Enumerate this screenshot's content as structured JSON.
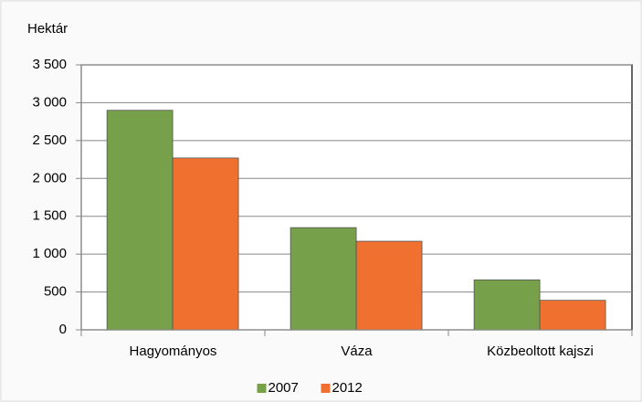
{
  "chart_data": {
    "type": "bar",
    "y_label": "Hektár",
    "categories": [
      "Hagyományos",
      "Váza",
      "Közbeoltott kajszi"
    ],
    "series": [
      {
        "name": "2007",
        "color": "#77a04a",
        "values": [
          2900,
          1350,
          660
        ]
      },
      {
        "name": "2012",
        "color": "#f07030",
        "values": [
          2270,
          1170,
          390
        ]
      }
    ],
    "ylim": [
      0,
      3500
    ],
    "yticks": [
      0,
      500,
      {
        "value": 1000,
        "label": "1 000"
      },
      {
        "value": 1500,
        "label": "1 500"
      },
      {
        "value": 2000,
        "label": "2 000"
      },
      {
        "value": 2500,
        "label": "2 500"
      },
      {
        "value": 3000,
        "label": "3 000"
      },
      {
        "value": 3500,
        "label": "3 500"
      }
    ],
    "grid": true,
    "legend": "bottom"
  }
}
